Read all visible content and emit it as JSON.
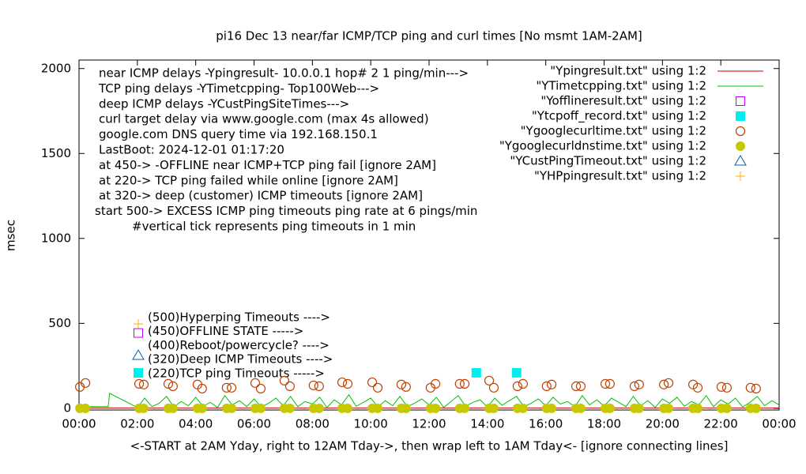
{
  "chart_data": {
    "type": "line",
    "title": "pi16 Dec 13  near/far ICMP/TCP ping and curl times [No msmt 1AM-2AM]",
    "ylabel": "msec",
    "xlabel": "<-START at 2AM Yday, right to 12AM Tday->, then wrap left to 1AM Tday<- [ignore connecting lines]",
    "annotations": [
      "near ICMP delays -Ypingresult- 10.0.0.1 hop# 2 1 ping/min--->",
      "TCP ping delays -YTimetcpping- Top100Web--->",
      "deep ICMP delays -YCustPingSiteTimes--->",
      "curl target delay via www.google.com (max 4s allowed)",
      "google.com DNS query time via 192.168.150.1",
      "LastBoot: 2024-12-01 01:17:20",
      "at 450-> -OFFLINE near ICMP+TCP ping fail [ignore 2AM]",
      "at 220-> TCP ping failed while online [ignore 2AM]",
      "at 320-> deep (customer) ICMP timeouts [ignore 2AM]",
      "start 500-> EXCESS ICMP ping timeouts ping rate at 6 pings/min",
      "#vertical tick represents ping timeouts in 1 min"
    ],
    "key_notes": [
      "(500)Hyperping Timeouts ---->",
      "(450)OFFLINE STATE ----->",
      "(400)Reboot/powercycle? ---->",
      "(320)Deep ICMP Timeouts ---->",
      "(220)TCP ping Timeouts ----->"
    ],
    "xlim": [
      0,
      24
    ],
    "ylim": [
      -10,
      2050
    ],
    "xticks": [
      {
        "value": 0,
        "label": "00:00"
      },
      {
        "value": 2,
        "label": "02:00"
      },
      {
        "value": 4,
        "label": "04:00"
      },
      {
        "value": 6,
        "label": "06:00"
      },
      {
        "value": 8,
        "label": "08:00"
      },
      {
        "value": 10,
        "label": "10:00"
      },
      {
        "value": 12,
        "label": "12:00"
      },
      {
        "value": 14,
        "label": "14:00"
      },
      {
        "value": 16,
        "label": "16:00"
      },
      {
        "value": 18,
        "label": "18:00"
      },
      {
        "value": 20,
        "label": "20:00"
      },
      {
        "value": 22,
        "label": "22:00"
      },
      {
        "value": 24,
        "label": "00:00"
      }
    ],
    "yticks": [
      0,
      500,
      1000,
      1500,
      2000
    ],
    "legend": "top-right",
    "grid": false,
    "series": [
      {
        "name": "\"Ypingresult.txt\" using 1:2",
        "color": "#cc0000",
        "marker": "line",
        "x": [
          0,
          24
        ],
        "values": [
          2,
          2
        ]
      },
      {
        "name": "\"YTimetcpping.txt\" using 1:2",
        "color": "#00c000",
        "marker": "line",
        "x": [
          0,
          1,
          1.05,
          2,
          2.25,
          2.5,
          2.75,
          3,
          3.25,
          3.5,
          3.75,
          4,
          4.25,
          4.5,
          4.75,
          5,
          5.25,
          5.5,
          5.75,
          6,
          6.25,
          6.5,
          6.75,
          7,
          7.25,
          7.5,
          7.75,
          8,
          8.25,
          8.5,
          8.75,
          9,
          9.25,
          9.5,
          9.75,
          10,
          10.25,
          10.5,
          10.75,
          11,
          11.25,
          11.5,
          11.75,
          12,
          12.25,
          12.5,
          12.75,
          13,
          13.25,
          13.5,
          13.75,
          14,
          14.25,
          14.5,
          14.75,
          15,
          15.25,
          15.5,
          15.75,
          16,
          16.25,
          16.5,
          16.75,
          17,
          17.25,
          17.5,
          17.75,
          18,
          18.25,
          18.5,
          18.75,
          19,
          19.25,
          19.5,
          19.75,
          20,
          20.25,
          20.5,
          20.75,
          21,
          21.25,
          21.5,
          21.75,
          22,
          22.25,
          22.5,
          22.75,
          23,
          23.25,
          23.5,
          23.75,
          24
        ],
        "values": [
          10,
          10,
          88,
          5,
          60,
          10,
          30,
          70,
          8,
          40,
          15,
          65,
          12,
          35,
          5,
          75,
          20,
          45,
          10,
          55,
          8,
          30,
          60,
          15,
          70,
          10,
          40,
          25,
          65,
          5,
          50,
          20,
          80,
          12,
          35,
          60,
          8,
          45,
          15,
          70,
          10,
          30,
          55,
          20,
          65,
          5,
          40,
          75,
          12,
          35,
          50,
          8,
          60,
          18,
          45,
          70,
          10,
          30,
          55,
          15,
          65,
          25,
          40,
          8,
          75,
          20,
          50,
          12,
          60,
          35,
          10,
          70,
          15,
          45,
          5,
          55,
          30,
          65,
          12,
          40,
          20,
          75,
          10,
          50,
          25,
          60,
          8,
          35,
          70,
          15,
          45,
          20
        ]
      },
      {
        "name": "\"Yofflineresult.txt\" using 1:2",
        "color": "#c000ff",
        "marker": "square-open",
        "x": [],
        "values": []
      },
      {
        "name": "\"Ytcpoff_record.txt\" using 1:2",
        "color": "#00eeee",
        "marker": "square-filled",
        "x": [
          13.62,
          15.0
        ],
        "values": [
          209,
          209
        ]
      },
      {
        "name": "\"Ygooglecurltime.txt\" using 1:2",
        "color": "#c04000",
        "marker": "circle-open",
        "x": [
          0.03,
          0.22,
          2.06,
          2.22,
          3.06,
          3.22,
          4.06,
          4.22,
          5.06,
          5.23,
          6.04,
          6.23,
          7.04,
          7.23,
          8.04,
          8.23,
          9.02,
          9.21,
          10.05,
          10.24,
          11.05,
          11.21,
          12.05,
          12.22,
          13.05,
          13.22,
          14.06,
          14.22,
          15.03,
          15.22,
          16.03,
          16.2,
          17.04,
          17.2,
          18.04,
          18.2,
          19.04,
          19.2,
          20.05,
          20.21,
          21.05,
          21.21,
          22.02,
          22.21,
          23.02,
          23.21
        ],
        "values": [
          126,
          149,
          144,
          140,
          144,
          130,
          140,
          116,
          121,
          121,
          149,
          116,
          163,
          130,
          135,
          130,
          153,
          144,
          153,
          121,
          140,
          126,
          121,
          144,
          144,
          144,
          163,
          121,
          130,
          144,
          130,
          140,
          130,
          130,
          144,
          144,
          130,
          140,
          140,
          149,
          140,
          121,
          126,
          121,
          121,
          116
        ]
      },
      {
        "name": "\"Ygooglecurldnstime.txt\" using 1:2",
        "color": "#c8c800",
        "marker": "circle-filled",
        "x": [
          0.03,
          0.22,
          2.06,
          2.22,
          3.06,
          3.22,
          4.06,
          4.22,
          5.06,
          5.23,
          6.04,
          6.23,
          7.04,
          7.23,
          8.04,
          8.23,
          9.02,
          9.21,
          10.05,
          10.24,
          11.05,
          11.21,
          12.05,
          12.22,
          13.05,
          13.22,
          14.06,
          14.22,
          15.03,
          15.22,
          16.03,
          16.2,
          17.04,
          17.2,
          18.04,
          18.2,
          19.04,
          19.2,
          20.05,
          20.21,
          21.05,
          21.21,
          22.02,
          22.21,
          23.02,
          23.21
        ],
        "values": [
          0,
          0,
          0,
          0,
          0,
          0,
          0,
          0,
          0,
          0,
          0,
          0,
          0,
          0,
          0,
          0,
          0,
          0,
          0,
          0,
          0,
          0,
          0,
          0,
          0,
          0,
          0,
          0,
          0,
          0,
          0,
          0,
          0,
          0,
          0,
          0,
          0,
          0,
          0,
          0,
          0,
          0,
          0,
          0,
          0,
          0
        ]
      },
      {
        "name": "\"YCustPingTimeout.txt\" using 1:2",
        "color": "#0060ad",
        "marker": "triangle-open",
        "x": [],
        "values": []
      },
      {
        "name": "\"YHPpingresult.txt\" using 1:2",
        "color": "#ffc020",
        "marker": "plus",
        "x": [],
        "values": []
      }
    ]
  }
}
